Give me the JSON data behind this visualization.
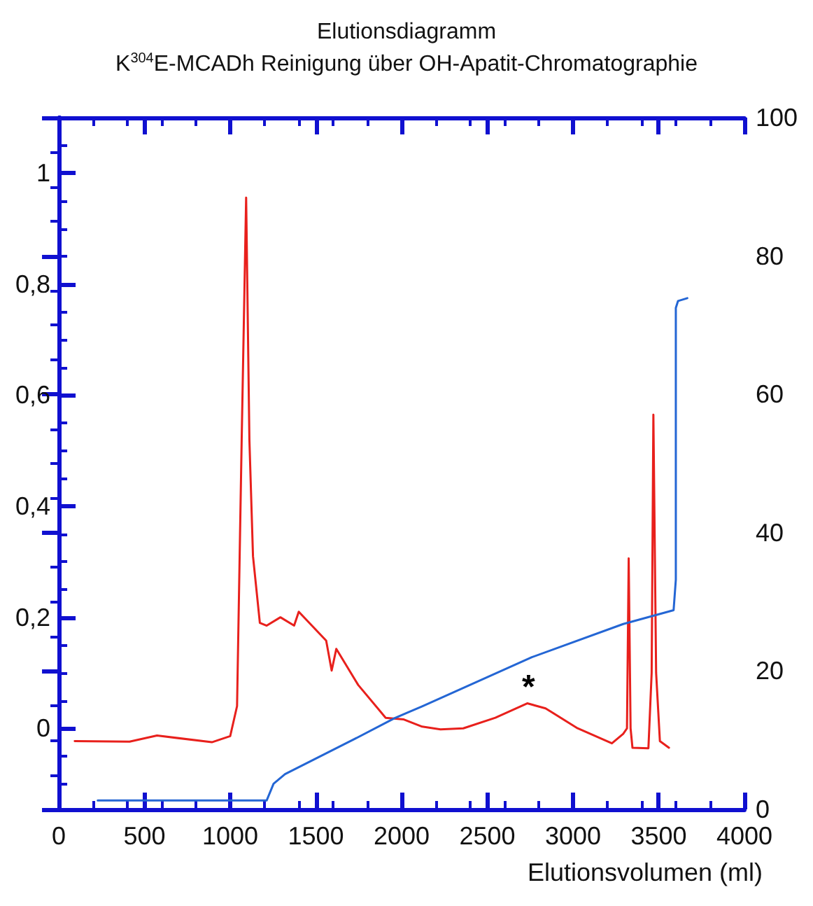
{
  "chart_data": {
    "type": "line",
    "title": "Elutionsdiagramm",
    "subtitle": "K$^{304}$E-MCADh Reinigung über OH-Apatit-Chromatographie",
    "xlabel": "Elutionsvolumen (ml)",
    "xlim": [
      0,
      4000
    ],
    "xticks": [
      0,
      500,
      1000,
      1500,
      2000,
      2500,
      3000,
      3500,
      4000
    ],
    "ylim": [
      -0.146,
      1.1
    ],
    "yticks": [
      {
        "value": 0,
        "label": "0"
      },
      {
        "value": 0.2,
        "label": "0,2"
      },
      {
        "value": 0.4,
        "label": "0,4"
      },
      {
        "value": 0.6,
        "label": "0,6"
      },
      {
        "value": 0.8,
        "label": "0,8"
      },
      {
        "value": 1,
        "label": "1"
      }
    ],
    "y2lim": [
      0,
      100
    ],
    "y2ticks": [
      0,
      20,
      40,
      60,
      80,
      100
    ],
    "grid": false,
    "marker": "none",
    "line_style": "solid",
    "annotations": [
      "*"
    ],
    "series": [
      {
        "color": "#e8201c",
        "x": [
          93,
          413,
          573,
          893,
          1000,
          1040,
          1067,
          1093,
          1112,
          1133,
          1173,
          1213,
          1293,
          1373,
          1400,
          1560,
          1592,
          1619,
          1747,
          1907,
          2013,
          2120,
          2227,
          2360,
          2547,
          2733,
          2840,
          3027,
          3227,
          3293,
          3315,
          3325,
          3336,
          3347,
          3440,
          3459,
          3469,
          3485,
          3507,
          3560
        ],
        "values": [
          -0.023,
          -0.024,
          -0.013,
          -0.025,
          -0.014,
          0.04,
          0.52,
          0.956,
          0.52,
          0.31,
          0.19,
          0.185,
          0.2,
          0.185,
          0.21,
          0.158,
          0.104,
          0.143,
          0.078,
          0.019,
          0.016,
          0.003,
          -0.002,
          0,
          0.019,
          0.045,
          0.036,
          0,
          -0.027,
          -0.01,
          0,
          0.306,
          0,
          -0.035,
          -0.036,
          0.1,
          0.565,
          0.1,
          -0.023,
          -0.035
        ]
      },
      {
        "color": "#2466d4",
        "axis": "y2",
        "x": [
          227,
          1213,
          1253,
          1320,
          1720,
          1960,
          2120,
          2760,
          3293,
          3587,
          3600,
          3600,
          3613,
          3667
        ],
        "values": [
          1.3,
          1.3,
          3.7,
          5.1,
          10.1,
          13.2,
          14.9,
          22.0,
          26.8,
          28.8,
          33.2,
          72.5,
          73.5,
          73.9
        ]
      }
    ]
  }
}
